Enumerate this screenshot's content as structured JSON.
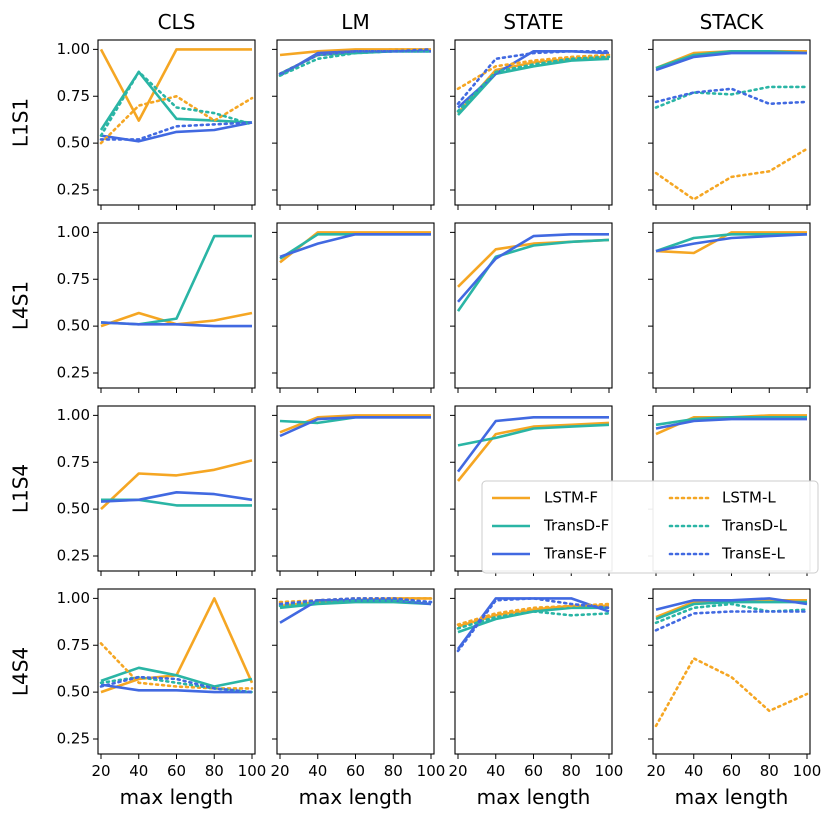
{
  "chart_data": {
    "type": "line",
    "title": "",
    "xlabel": "max length",
    "ylabel": "",
    "columns": [
      "CLS",
      "LM",
      "STATE",
      "STACK"
    ],
    "rows": [
      "L1S1",
      "L4S1",
      "L1S4",
      "L4S4"
    ],
    "x": [
      20,
      40,
      60,
      80,
      100
    ],
    "xticks": [
      "20",
      "40",
      "60",
      "80",
      "100"
    ],
    "yticks": [
      "0.25",
      "0.50",
      "0.75",
      "1.00"
    ],
    "ytick_values": [
      0.25,
      0.5,
      0.75,
      1.0
    ],
    "xlim": [
      20,
      100
    ],
    "ylim": [
      0.17,
      1.05
    ],
    "colors": {
      "LSTM": "#f5a623",
      "TransD": "#2ab5a5",
      "TransE": "#4169e1"
    },
    "legend": {
      "placement": "inside L1S4 / STATE-STACK, lower",
      "entries": [
        {
          "label": "LSTM-F",
          "model": "LSTM",
          "style": "solid"
        },
        {
          "label": "TransD-F",
          "model": "TransD",
          "style": "solid"
        },
        {
          "label": "TransE-F",
          "model": "TransE",
          "style": "solid"
        },
        {
          "label": "LSTM-L",
          "model": "LSTM",
          "style": "dotted"
        },
        {
          "label": "TransD-L",
          "model": "TransD",
          "style": "dotted"
        },
        {
          "label": "TransE-L",
          "model": "TransE",
          "style": "dotted"
        }
      ]
    },
    "panels": [
      {
        "row": "L1S1",
        "col": "CLS",
        "series": [
          {
            "name": "LSTM-F",
            "values": [
              1.0,
              0.62,
              1.0,
              1.0,
              1.0
            ]
          },
          {
            "name": "TransD-F",
            "values": [
              0.57,
              0.88,
              0.63,
              0.62,
              0.61
            ]
          },
          {
            "name": "TransE-F",
            "values": [
              0.54,
              0.51,
              0.56,
              0.57,
              0.61
            ]
          },
          {
            "name": "LSTM-L",
            "values": [
              0.5,
              0.7,
              0.75,
              0.62,
              0.74
            ]
          },
          {
            "name": "TransD-L",
            "values": [
              0.54,
              0.88,
              0.69,
              0.66,
              0.6
            ]
          },
          {
            "name": "TransE-L",
            "values": [
              0.52,
              0.52,
              0.59,
              0.6,
              0.61
            ]
          }
        ]
      },
      {
        "row": "L1S1",
        "col": "LM",
        "series": [
          {
            "name": "LSTM-F",
            "values": [
              0.97,
              0.99,
              1.0,
              1.0,
              1.0
            ]
          },
          {
            "name": "TransD-F",
            "values": [
              0.87,
              0.97,
              0.98,
              0.99,
              0.99
            ]
          },
          {
            "name": "TransE-F",
            "values": [
              0.86,
              0.98,
              0.99,
              0.99,
              0.99
            ]
          },
          {
            "name": "LSTM-L",
            "values": [
              0.87,
              0.97,
              0.99,
              1.0,
              1.0
            ]
          },
          {
            "name": "TransD-L",
            "values": [
              0.86,
              0.95,
              0.98,
              0.99,
              0.99
            ]
          },
          {
            "name": "TransE-L",
            "values": [
              0.87,
              0.97,
              0.99,
              0.99,
              1.0
            ]
          }
        ]
      },
      {
        "row": "L1S1",
        "col": "STATE",
        "series": [
          {
            "name": "LSTM-F",
            "values": [
              0.66,
              0.89,
              0.93,
              0.95,
              0.96
            ]
          },
          {
            "name": "TransD-F",
            "values": [
              0.65,
              0.87,
              0.91,
              0.94,
              0.95
            ]
          },
          {
            "name": "TransE-F",
            "values": [
              0.69,
              0.87,
              0.99,
              0.99,
              0.98
            ]
          },
          {
            "name": "LSTM-L",
            "values": [
              0.79,
              0.91,
              0.94,
              0.96,
              0.97
            ]
          },
          {
            "name": "TransD-L",
            "values": [
              0.67,
              0.88,
              0.92,
              0.95,
              0.96
            ]
          },
          {
            "name": "TransE-L",
            "values": [
              0.71,
              0.95,
              0.98,
              0.99,
              0.99
            ]
          }
        ]
      },
      {
        "row": "L1S1",
        "col": "STACK",
        "series": [
          {
            "name": "LSTM-F",
            "values": [
              0.9,
              0.98,
              0.99,
              0.99,
              0.99
            ]
          },
          {
            "name": "TransD-F",
            "values": [
              0.9,
              0.97,
              0.99,
              0.99,
              0.98
            ]
          },
          {
            "name": "TransE-F",
            "values": [
              0.89,
              0.96,
              0.98,
              0.98,
              0.98
            ]
          },
          {
            "name": "LSTM-L",
            "values": [
              0.34,
              0.2,
              0.32,
              0.35,
              0.47
            ]
          },
          {
            "name": "TransD-L",
            "values": [
              0.69,
              0.77,
              0.76,
              0.8,
              0.8
            ]
          },
          {
            "name": "TransE-L",
            "values": [
              0.72,
              0.77,
              0.79,
              0.71,
              0.72
            ]
          }
        ]
      },
      {
        "row": "L4S1",
        "col": "CLS",
        "series": [
          {
            "name": "LSTM-F",
            "values": [
              0.5,
              0.57,
              0.51,
              0.53,
              0.57
            ]
          },
          {
            "name": "TransD-F",
            "values": [
              0.52,
              0.51,
              0.54,
              0.98,
              0.98
            ]
          },
          {
            "name": "TransE-F",
            "values": [
              0.52,
              0.51,
              0.51,
              0.5,
              0.5
            ]
          }
        ]
      },
      {
        "row": "L4S1",
        "col": "LM",
        "series": [
          {
            "name": "LSTM-F",
            "values": [
              0.84,
              1.0,
              1.0,
              1.0,
              1.0
            ]
          },
          {
            "name": "TransD-F",
            "values": [
              0.86,
              0.99,
              0.99,
              0.99,
              0.99
            ]
          },
          {
            "name": "TransE-F",
            "values": [
              0.87,
              0.94,
              0.99,
              0.99,
              0.99
            ]
          }
        ]
      },
      {
        "row": "L4S1",
        "col": "STATE",
        "series": [
          {
            "name": "LSTM-F",
            "values": [
              0.71,
              0.91,
              0.94,
              0.95,
              0.96
            ]
          },
          {
            "name": "TransD-F",
            "values": [
              0.58,
              0.87,
              0.93,
              0.95,
              0.96
            ]
          },
          {
            "name": "TransE-F",
            "values": [
              0.63,
              0.86,
              0.98,
              0.99,
              0.99
            ]
          }
        ]
      },
      {
        "row": "L4S1",
        "col": "STACK",
        "series": [
          {
            "name": "LSTM-F",
            "values": [
              0.9,
              0.89,
              1.0,
              1.0,
              1.0
            ]
          },
          {
            "name": "TransD-F",
            "values": [
              0.9,
              0.97,
              0.99,
              0.99,
              0.99
            ]
          },
          {
            "name": "TransE-F",
            "values": [
              0.9,
              0.94,
              0.97,
              0.98,
              0.99
            ]
          }
        ]
      },
      {
        "row": "L1S4",
        "col": "CLS",
        "series": [
          {
            "name": "LSTM-F",
            "values": [
              0.5,
              0.69,
              0.68,
              0.71,
              0.76
            ]
          },
          {
            "name": "TransD-F",
            "values": [
              0.55,
              0.55,
              0.52,
              0.52,
              0.52
            ]
          },
          {
            "name": "TransE-F",
            "values": [
              0.54,
              0.55,
              0.59,
              0.58,
              0.55
            ]
          }
        ]
      },
      {
        "row": "L1S4",
        "col": "LM",
        "series": [
          {
            "name": "LSTM-F",
            "values": [
              0.91,
              0.99,
              1.0,
              1.0,
              1.0
            ]
          },
          {
            "name": "TransD-F",
            "values": [
              0.97,
              0.96,
              0.99,
              0.99,
              0.99
            ]
          },
          {
            "name": "TransE-F",
            "values": [
              0.89,
              0.98,
              0.99,
              0.99,
              0.99
            ]
          }
        ]
      },
      {
        "row": "L1S4",
        "col": "STATE",
        "series": [
          {
            "name": "LSTM-F",
            "values": [
              0.65,
              0.9,
              0.94,
              0.95,
              0.96
            ]
          },
          {
            "name": "TransD-F",
            "values": [
              0.84,
              0.88,
              0.93,
              0.94,
              0.95
            ]
          },
          {
            "name": "TransE-F",
            "values": [
              0.7,
              0.97,
              0.99,
              0.99,
              0.99
            ]
          }
        ]
      },
      {
        "row": "L1S4",
        "col": "STACK",
        "series": [
          {
            "name": "LSTM-F",
            "values": [
              0.9,
              0.99,
              0.99,
              1.0,
              1.0
            ]
          },
          {
            "name": "TransD-F",
            "values": [
              0.95,
              0.98,
              0.99,
              0.99,
              0.99
            ]
          },
          {
            "name": "TransE-F",
            "values": [
              0.93,
              0.97,
              0.98,
              0.98,
              0.98
            ]
          }
        ]
      },
      {
        "row": "L4S4",
        "col": "CLS",
        "series": [
          {
            "name": "LSTM-F",
            "values": [
              0.5,
              0.57,
              0.59,
              1.0,
              0.55
            ]
          },
          {
            "name": "TransD-F",
            "values": [
              0.56,
              0.63,
              0.59,
              0.53,
              0.57
            ]
          },
          {
            "name": "TransE-F",
            "values": [
              0.54,
              0.51,
              0.51,
              0.5,
              0.5
            ]
          },
          {
            "name": "LSTM-L",
            "values": [
              0.76,
              0.55,
              0.53,
              0.52,
              0.52
            ]
          },
          {
            "name": "TransD-L",
            "values": [
              0.55,
              0.58,
              0.55,
              0.52,
              0.5
            ]
          },
          {
            "name": "TransE-L",
            "values": [
              0.53,
              0.58,
              0.57,
              0.52,
              0.5
            ]
          }
        ]
      },
      {
        "row": "L4S4",
        "col": "LM",
        "series": [
          {
            "name": "LSTM-F",
            "values": [
              0.96,
              0.98,
              0.99,
              1.0,
              1.0
            ]
          },
          {
            "name": "TransD-F",
            "values": [
              0.95,
              0.97,
              0.98,
              0.98,
              0.97
            ]
          },
          {
            "name": "TransE-F",
            "values": [
              0.87,
              0.99,
              0.99,
              0.99,
              0.97
            ]
          },
          {
            "name": "LSTM-L",
            "values": [
              0.98,
              0.99,
              1.0,
              1.0,
              1.0
            ]
          },
          {
            "name": "TransD-L",
            "values": [
              0.96,
              0.98,
              0.99,
              0.99,
              0.98
            ]
          },
          {
            "name": "TransE-L",
            "values": [
              0.97,
              0.99,
              1.0,
              1.0,
              0.98
            ]
          }
        ]
      },
      {
        "row": "L4S4",
        "col": "STATE",
        "series": [
          {
            "name": "LSTM-F",
            "values": [
              0.85,
              0.91,
              0.94,
              0.96,
              0.96
            ]
          },
          {
            "name": "TransD-F",
            "values": [
              0.82,
              0.89,
              0.93,
              0.95,
              0.95
            ]
          },
          {
            "name": "TransE-F",
            "values": [
              0.73,
              1.0,
              1.0,
              1.0,
              0.93
            ]
          },
          {
            "name": "LSTM-L",
            "values": [
              0.86,
              0.92,
              0.95,
              0.96,
              0.97
            ]
          },
          {
            "name": "TransD-L",
            "values": [
              0.84,
              0.9,
              0.93,
              0.91,
              0.92
            ]
          },
          {
            "name": "TransE-L",
            "values": [
              0.72,
              0.99,
              1.0,
              0.97,
              0.95
            ]
          }
        ]
      },
      {
        "row": "L4S4",
        "col": "STACK",
        "series": [
          {
            "name": "LSTM-F",
            "values": [
              0.9,
              0.98,
              0.99,
              0.99,
              0.99
            ]
          },
          {
            "name": "TransD-F",
            "values": [
              0.89,
              0.97,
              0.98,
              0.98,
              0.98
            ]
          },
          {
            "name": "TransE-F",
            "values": [
              0.94,
              0.99,
              0.99,
              1.0,
              0.97
            ]
          },
          {
            "name": "LSTM-L",
            "values": [
              0.32,
              0.68,
              0.58,
              0.4,
              0.49
            ]
          },
          {
            "name": "TransD-L",
            "values": [
              0.87,
              0.95,
              0.97,
              0.93,
              0.94
            ]
          },
          {
            "name": "TransE-L",
            "values": [
              0.83,
              0.92,
              0.93,
              0.93,
              0.93
            ]
          }
        ]
      }
    ]
  }
}
